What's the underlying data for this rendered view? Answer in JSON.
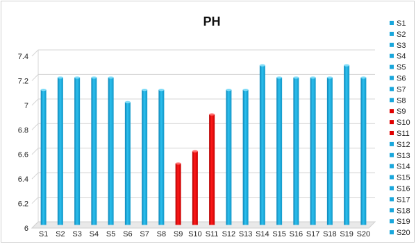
{
  "chart_data": {
    "type": "bar",
    "title": "PH",
    "xlabel": "",
    "ylabel": "",
    "ylim": [
      6,
      7.4
    ],
    "yticks": [
      6,
      6.2,
      6.4,
      6.6,
      6.8,
      7,
      7.2,
      7.4
    ],
    "ytick_labels": [
      "6",
      "6.2",
      "6.4",
      "6.6",
      "6.8",
      "7",
      "7.2",
      "7.4"
    ],
    "categories": [
      "S1",
      "S2",
      "S3",
      "S4",
      "S5",
      "S6",
      "S7",
      "S8",
      "S9",
      "S10",
      "S11",
      "S12",
      "S13",
      "S14",
      "S15",
      "S16",
      "S17",
      "S18",
      "S19",
      "S20"
    ],
    "values": [
      7.1,
      7.2,
      7.2,
      7.2,
      7.2,
      7.0,
      7.1,
      7.1,
      6.5,
      6.6,
      6.9,
      7.1,
      7.1,
      7.3,
      7.2,
      7.2,
      7.2,
      7.2,
      7.3,
      7.2
    ],
    "colors": [
      "#1aa7dc",
      "#1aa7dc",
      "#1aa7dc",
      "#1aa7dc",
      "#1aa7dc",
      "#1aa7dc",
      "#1aa7dc",
      "#1aa7dc",
      "#e00000",
      "#e00000",
      "#e00000",
      "#1aa7dc",
      "#1aa7dc",
      "#1aa7dc",
      "#1aa7dc",
      "#1aa7dc",
      "#1aa7dc",
      "#1aa7dc",
      "#1aa7dc",
      "#1aa7dc"
    ],
    "grid": true,
    "legend_position": "right",
    "legend": [
      "S1",
      "S2",
      "S3",
      "S4",
      "S5",
      "S6",
      "S7",
      "S8",
      "S9",
      "S10",
      "S11",
      "S12",
      "S13",
      "S14",
      "S15",
      "S16",
      "S17",
      "S18",
      "S19",
      "S20"
    ]
  }
}
